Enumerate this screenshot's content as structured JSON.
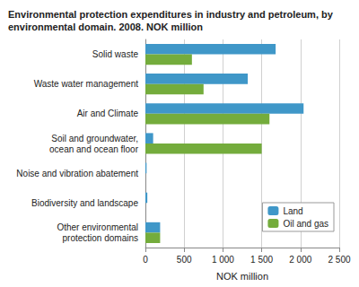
{
  "chart_data": {
    "type": "bar",
    "orientation": "horizontal",
    "title": "Environmental protection expenditures in industry and petroleum, by\nenvironmental domain. 2008. NOK million",
    "x_label": "NOK million",
    "categories": [
      "Solid waste",
      "Waste water management",
      "Air and Climate",
      "Soil and groundwater,\nocean and ocean floor",
      "Noise and vibration abatement",
      "Biodiversity and landscape",
      "Other environmental\nprotection domains"
    ],
    "series": [
      {
        "name": "Land",
        "color": "#3f97c8",
        "values": [
          1680,
          1320,
          2040,
          100,
          15,
          25,
          190
        ]
      },
      {
        "name": "Oil and gas",
        "color": "#74ac3c",
        "values": [
          600,
          750,
          1600,
          1500,
          0,
          0,
          190
        ]
      }
    ],
    "xlim": [
      0,
      2500
    ],
    "xticks": [
      0,
      500,
      {
        "value": 1000,
        "label": "1 000"
      },
      {
        "value": 1500,
        "label": "1 500"
      },
      {
        "value": 2000,
        "label": "2 000"
      },
      {
        "value": 2500,
        "label": "2 500"
      }
    ],
    "grid": true,
    "legend": "lower right"
  }
}
